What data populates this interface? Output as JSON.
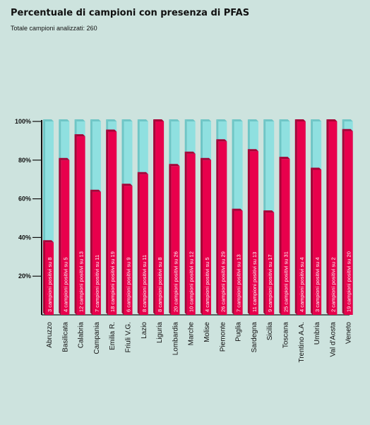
{
  "chart_data": {
    "type": "bar",
    "title": "Percentuale di campioni con presenza di PFAS",
    "subtitle": "Totale campioni analizzati: 260",
    "categories": [
      "Abruzzo",
      "Basilicata",
      "Calabria",
      "Campania",
      "Emilia R.",
      "Friuli V.G.",
      "Lazio",
      "Liguria",
      "Lombardia",
      "Marche",
      "Molise",
      "Piemonte",
      "Puglia",
      "Sardegna",
      "Sicilia",
      "Toscana",
      "Trentino A.A.",
      "Umbria",
      "Val d'Aosta",
      "Veneto"
    ],
    "values": [
      37.5,
      80,
      92.3,
      63.6,
      94.7,
      66.7,
      72.7,
      100,
      76.9,
      83.3,
      80,
      89.7,
      53.8,
      84.6,
      52.9,
      80.6,
      100,
      75,
      100,
      95
    ],
    "bar_labels": [
      "3 campioni positivi su 8",
      "4 campioni positivi su 5",
      "12 campioni positivi su 13",
      "7 campioni positivi su 11",
      "18 campioni positivi su 19",
      "6 campioni positivi su 9",
      "8 campioni positivi su 11",
      "8 campioni positivi su 8",
      "20 campioni positivi su 26",
      "10 campioni positivi su 12",
      "4 campioni positivi su 5",
      "26 campioni positivi su 29",
      "7 campioni positivi su 13",
      "11 campioni positivi su 13",
      "9 campioni positivi su 17",
      "25 campioni positivi su 31",
      "4 campioni positivi su 4",
      "3 campioni positivi su 4",
      "2 campioni positivi su 2",
      "19 campioni positivi su 20"
    ],
    "y_ticks": [
      "20%",
      "40%",
      "60%",
      "80%",
      "100%"
    ],
    "ylim": [
      0,
      100
    ],
    "colors": {
      "positive": "#e8004c",
      "positive_dark": "#a80036",
      "remainder": "#8fe0e0",
      "remainder_dark": "#6fc6c6",
      "background": "#cde3de"
    }
  }
}
